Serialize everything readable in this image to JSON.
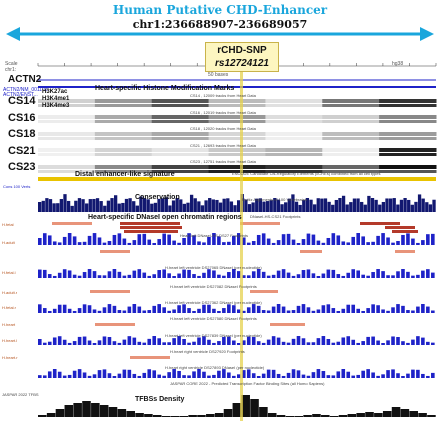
{
  "header": {
    "title": "Human Putative CHD-Enhancer",
    "coords": "chr1:236688907-236689057"
  },
  "snp": {
    "label": "rCHD-SNP",
    "id": "rs12724121"
  },
  "scale": {
    "label": "Scale",
    "value": "50 bases",
    "assembly": "hg38",
    "chr": "chr1:",
    "ticks": [
      "236,688,900",
      "236,688,910",
      "236,688,920",
      "236,688,930",
      "236,688,940",
      "236,688,950",
      "236,688,960",
      "236,688,970",
      "236,688,980",
      "236,688,990",
      "236,689,000",
      "236,689,010",
      "236,689,020",
      "236,689,030",
      "236,689,040",
      "236,689,050"
    ]
  },
  "gene": {
    "name": "ACTN2",
    "sub1": "ACTN2/NM_001103",
    "sub2": "ACTN2/ENST..."
  },
  "histone": {
    "title": "Heart-specific Histone Modification Marks",
    "marks": [
      "H3K27ac",
      "H3K4me1",
      "H3K4me3"
    ],
    "rows": [
      {
        "label": "CS14",
        "caption": "CS14 , 12009 tracks from Heart Data"
      },
      {
        "label": "CS16",
        "caption": "CS16 , 12019 tracks from Heart Data"
      },
      {
        "label": "CS18",
        "caption": "CS18 , 12020 tracks from Heart Data"
      },
      {
        "label": "CS21",
        "caption": "CS21 , 12693 tracks from Heart Data"
      },
      {
        "label": "CS23",
        "caption": "CS23 , 12751 tracks from Heart Data"
      }
    ]
  },
  "enhancer": {
    "title": "Distal enhancer-like signature",
    "caption": "ENCODE Candidate Cis-Regulatory Elements (cCREs) combined from all cell types"
  },
  "conservation": {
    "title": "Conservation",
    "sub": "Cons 100 Verts",
    "caption": "Multiz Alignments of 100 Vertebrates"
  },
  "dnase": {
    "title": "Heart-specific DNaseI open chromatin regions",
    "sides": [
      "H.fetal",
      "H.adult",
      "H.fetal.l",
      "H.adult.r",
      "H.fetal.r",
      "H.heart",
      "H.heart.l",
      "H.heart.r"
    ],
    "captions": [
      "DNaseI-HS-CS21 Footprints",
      "Heart-left DNaseI-HS-DS27 Footprints",
      "H.heart left ventricle DS27065 DNaseI (per nucleotide)",
      "H.heart left ventricle DS27082 DNaseI Footprints",
      "H.heart left ventricle DS27362 DNaseI (per nucleotide)",
      "H.heart left ventricle DS27580 DNaseI Footprints",
      "H.heart left ventricle DS27839 DNaseI (per nucleotide)",
      "H.heart right ventricle DS27920 Footprints",
      "H.heart right ventricle DS27893 DNaseI (per nucleotide)"
    ]
  },
  "tfbs": {
    "title": "TFBSs Density",
    "caption": "JASPAR CORE 2022 - Predicted Transcription Factor Binding Sites (all Homo Sapiens)",
    "side": "JASPAR 2022 TFBS"
  },
  "colors": {
    "accent": "#1aa6dc",
    "blue": "#1e22c8",
    "navy": "#121870",
    "salmon": "#e8947a",
    "darkred": "#b43a2a",
    "gold": "#e9c300",
    "snpline": "#e6d24d"
  }
}
